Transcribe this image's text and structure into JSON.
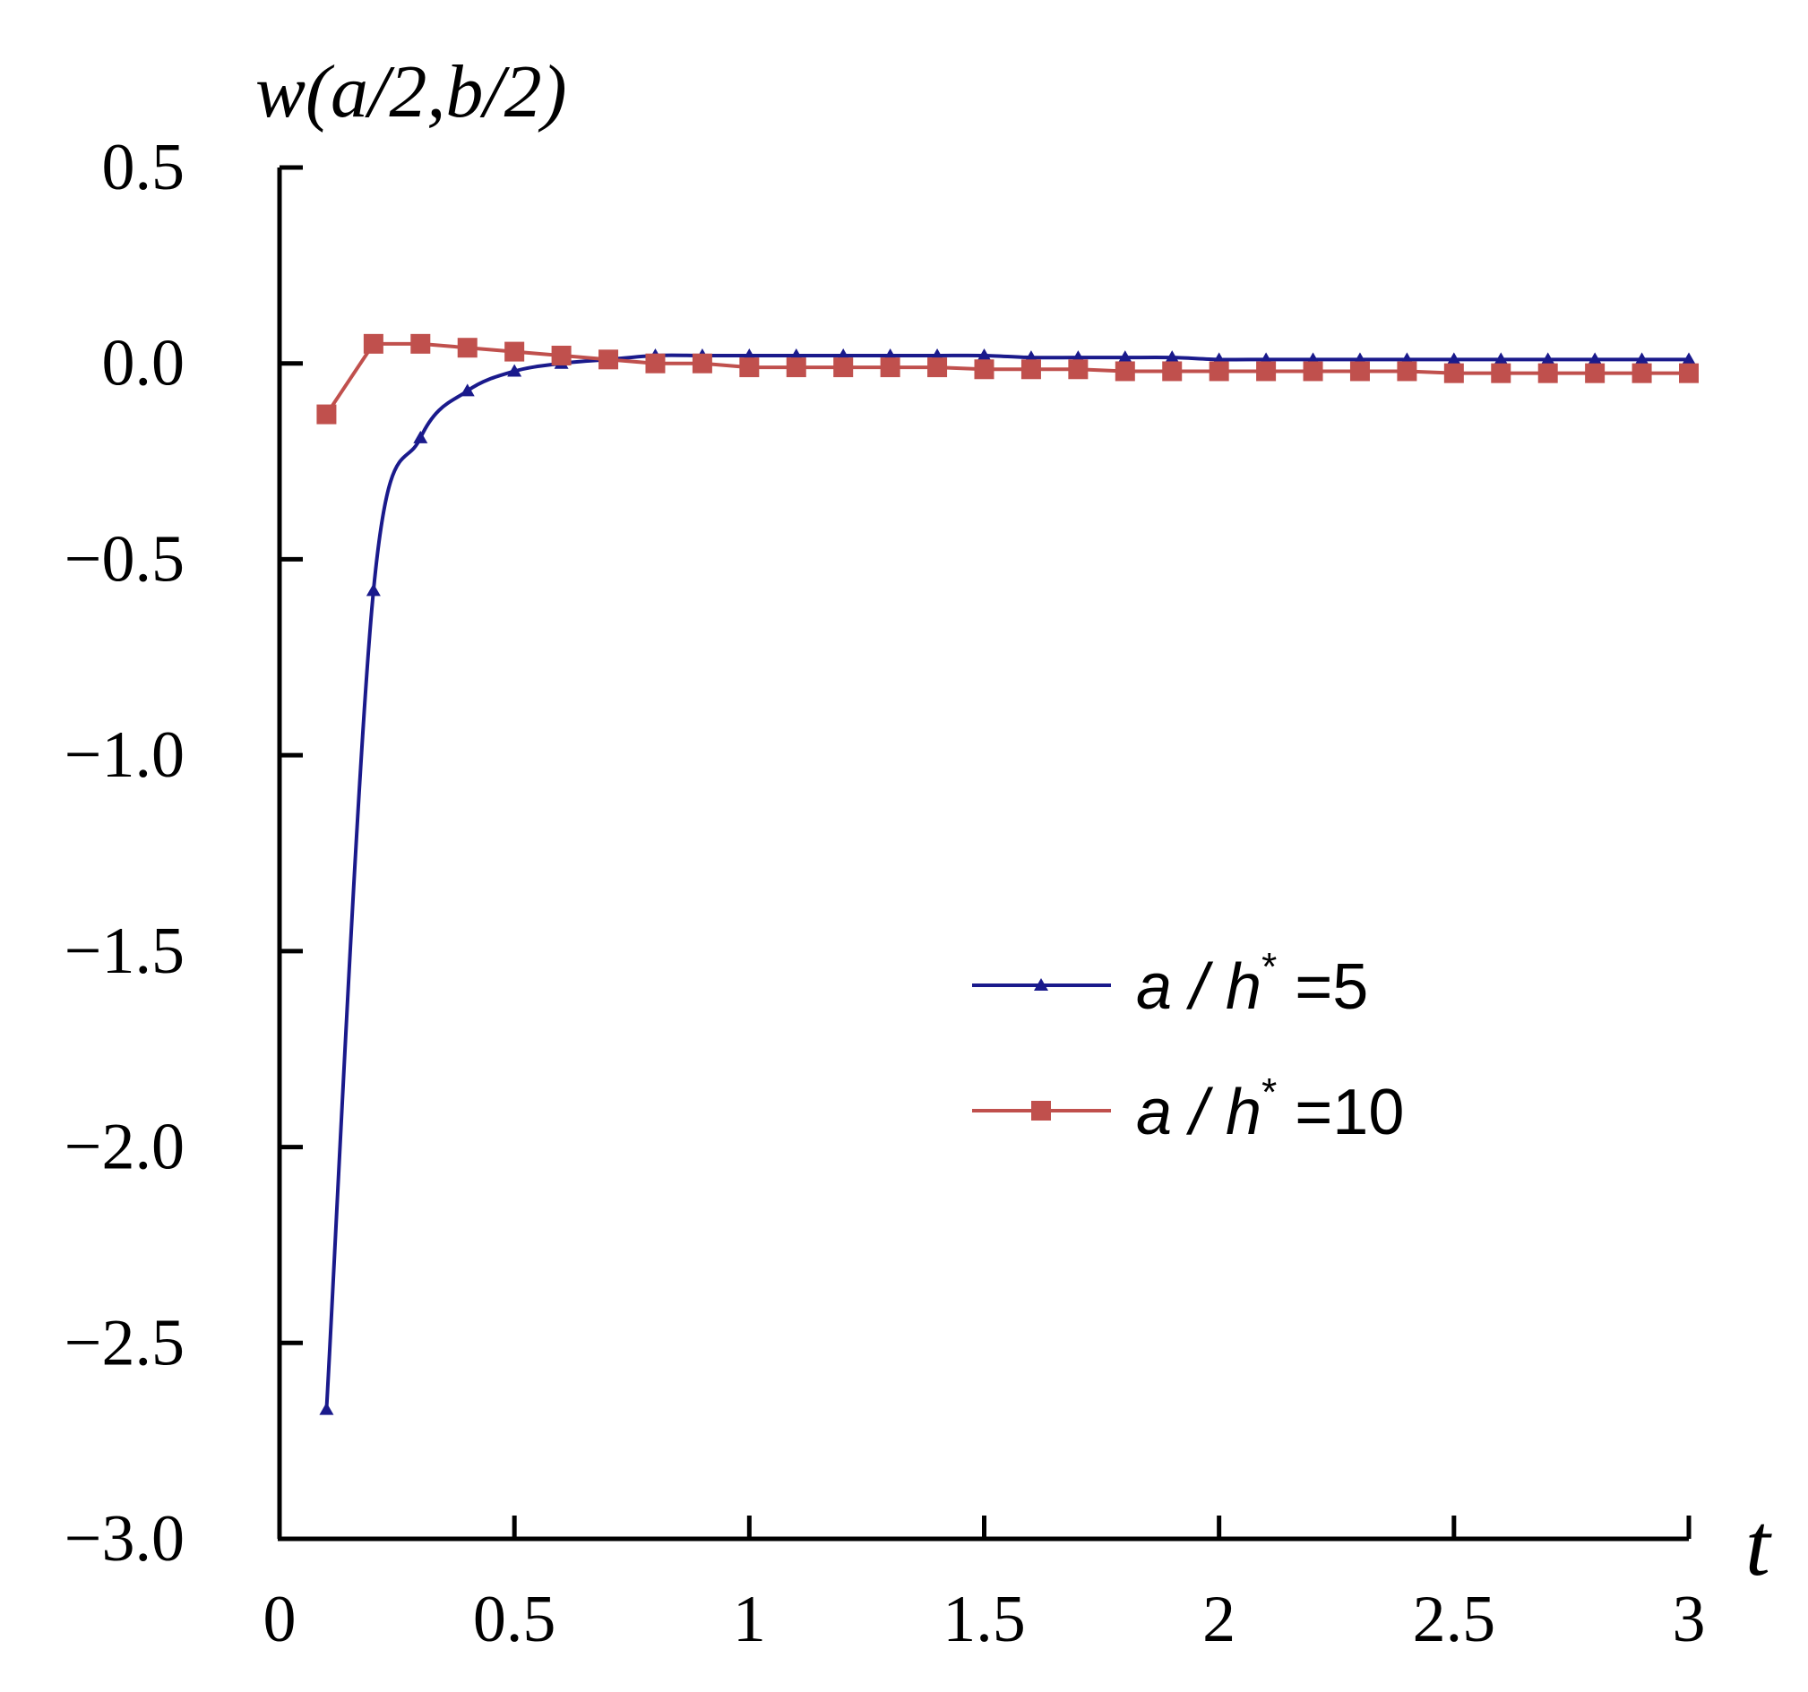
{
  "chart_data": {
    "type": "line",
    "title": "",
    "ylabel": "w(a/2,b/2)",
    "xlabel": "t",
    "xlim": [
      0,
      3
    ],
    "ylim": [
      -3.0,
      0.5
    ],
    "x_ticks": [
      "0",
      "0.5",
      "1",
      "1.5",
      "2",
      "2.5",
      "3"
    ],
    "y_ticks": [
      "0.5",
      "0.0",
      "−0.5",
      "−1.0",
      "−1.5",
      "−2.0",
      "−2.5",
      "−3.0"
    ],
    "grid": false,
    "legend_position": "right-middle",
    "series": [
      {
        "name_parts": [
          "a / h",
          "*",
          " =5"
        ],
        "color": "#1a1a8c",
        "marker": "triangle",
        "x": [
          0.1,
          0.2,
          0.3,
          0.4,
          0.5,
          0.6,
          0.7,
          0.8,
          0.9,
          1.0,
          1.1,
          1.2,
          1.3,
          1.4,
          1.5,
          1.6,
          1.7,
          1.8,
          1.9,
          2.0,
          2.1,
          2.2,
          2.3,
          2.4,
          2.5,
          2.6,
          2.7,
          2.8,
          2.9,
          3.0
        ],
        "y": [
          -2.67,
          -0.58,
          -0.19,
          -0.07,
          -0.02,
          0.0,
          0.01,
          0.02,
          0.02,
          0.02,
          0.02,
          0.02,
          0.02,
          0.02,
          0.02,
          0.015,
          0.015,
          0.015,
          0.015,
          0.01,
          0.01,
          0.01,
          0.01,
          0.01,
          0.01,
          0.01,
          0.01,
          0.01,
          0.01,
          0.01
        ]
      },
      {
        "name_parts": [
          "a / h",
          "*",
          " =10"
        ],
        "color": "#c0504d",
        "marker": "square",
        "x": [
          0.1,
          0.2,
          0.3,
          0.4,
          0.5,
          0.6,
          0.7,
          0.8,
          0.9,
          1.0,
          1.1,
          1.2,
          1.3,
          1.4,
          1.5,
          1.6,
          1.7,
          1.8,
          1.9,
          2.0,
          2.1,
          2.2,
          2.3,
          2.4,
          2.5,
          2.6,
          2.7,
          2.8,
          2.9,
          3.0
        ],
        "y": [
          -0.13,
          0.05,
          0.05,
          0.04,
          0.03,
          0.02,
          0.01,
          0.0,
          0.0,
          -0.01,
          -0.01,
          -0.01,
          -0.01,
          -0.01,
          -0.015,
          -0.015,
          -0.015,
          -0.02,
          -0.02,
          -0.02,
          -0.02,
          -0.02,
          -0.02,
          -0.02,
          -0.025,
          -0.025,
          -0.025,
          -0.025,
          -0.025,
          -0.025
        ]
      }
    ]
  }
}
